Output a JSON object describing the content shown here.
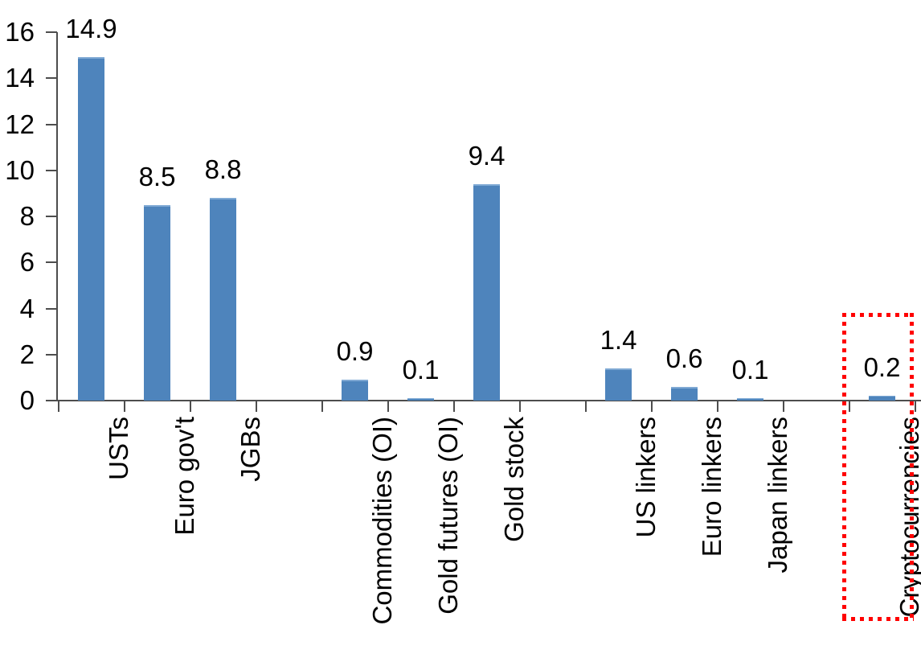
{
  "chart_data": {
    "type": "bar",
    "title": "",
    "xlabel": "",
    "ylabel": "",
    "categories": [
      "USTs",
      "Euro gov't",
      "JGBs",
      "Commodities (OI)",
      "Gold futures (OI)",
      "Gold stock",
      "US linkers",
      "Euro linkers",
      "Japan linkers",
      "Cryptocurrencies"
    ],
    "values": [
      14.9,
      8.5,
      8.8,
      0.9,
      0.1,
      9.4,
      1.4,
      0.6,
      0.1,
      0.2
    ],
    "data_labels": [
      "14.9",
      "8.5",
      "8.8",
      "0.9",
      "0.1",
      "9.4",
      "1.4",
      "0.6",
      "0.1",
      "0.2"
    ],
    "slot_indices": [
      0,
      1,
      2,
      4,
      5,
      6,
      8,
      9,
      10,
      12
    ],
    "total_slots": 13,
    "ylim": [
      0,
      16
    ],
    "yticks": [
      0,
      2,
      4,
      6,
      8,
      10,
      12,
      14,
      16
    ],
    "grid": false,
    "legend": false,
    "bar_color": "#4E84BC",
    "axis_color": "#4d4d4d",
    "text_color": "#000000",
    "annotation": {
      "type": "highlight-box",
      "target_category": "Cryptocurrencies",
      "border_color": "#FF0000",
      "border_style": "dotted"
    }
  }
}
